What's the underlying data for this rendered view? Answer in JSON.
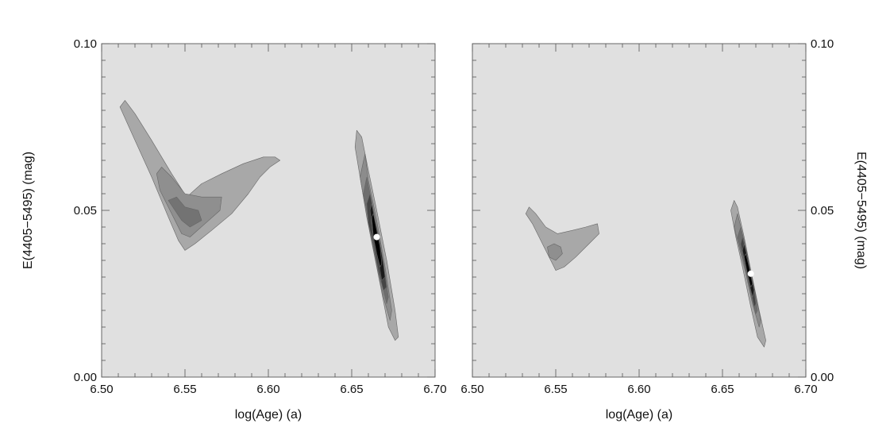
{
  "chart_data": [
    {
      "type": "contour",
      "panel": "left",
      "xlabel": "log(Age) (a)",
      "ylabel": "E(4405−5495) (mag)",
      "xlim": [
        6.5,
        6.7
      ],
      "ylim": [
        0.0,
        0.1
      ],
      "xticks": [
        "6.50",
        "6.55",
        "6.60",
        "6.65",
        "6.70"
      ],
      "yticks": [
        "0.00",
        "0.05",
        "0.10"
      ],
      "background_color": "#e0e0e0",
      "best_fit": {
        "x": 6.665,
        "y": 0.042
      },
      "contours": [
        {
          "level": 1,
          "color": "#a8a8a8",
          "points": [
            [
              6.511,
              0.081
            ],
            [
              6.514,
              0.083
            ],
            [
              6.52,
              0.079
            ],
            [
              6.53,
              0.071
            ],
            [
              6.542,
              0.061
            ],
            [
              6.551,
              0.054
            ],
            [
              6.56,
              0.058
            ],
            [
              6.572,
              0.061
            ],
            [
              6.585,
              0.064
            ],
            [
              6.597,
              0.066
            ],
            [
              6.604,
              0.066
            ],
            [
              6.607,
              0.065
            ],
            [
              6.601,
              0.063
            ],
            [
              6.595,
              0.06
            ],
            [
              6.588,
              0.055
            ],
            [
              6.578,
              0.049
            ],
            [
              6.566,
              0.044
            ],
            [
              6.556,
              0.04
            ],
            [
              6.55,
              0.038
            ],
            [
              6.546,
              0.041
            ],
            [
              6.54,
              0.048
            ],
            [
              6.53,
              0.06
            ],
            [
              6.52,
              0.071
            ]
          ]
        },
        {
          "level": 2,
          "color": "#8f8f8f",
          "points": [
            [
              6.533,
              0.061
            ],
            [
              6.536,
              0.063
            ],
            [
              6.542,
              0.06
            ],
            [
              6.55,
              0.055
            ],
            [
              6.56,
              0.054
            ],
            [
              6.572,
              0.054
            ],
            [
              6.571,
              0.05
            ],
            [
              6.562,
              0.046
            ],
            [
              6.553,
              0.042
            ],
            [
              6.548,
              0.043
            ],
            [
              6.543,
              0.048
            ],
            [
              6.535,
              0.056
            ]
          ]
        },
        {
          "level": 3,
          "color": "#737373",
          "points": [
            [
              6.54,
              0.053
            ],
            [
              6.545,
              0.054
            ],
            [
              6.55,
              0.051
            ],
            [
              6.558,
              0.05
            ],
            [
              6.56,
              0.047
            ],
            [
              6.553,
              0.045
            ],
            [
              6.548,
              0.047
            ]
          ]
        },
        {
          "level": 1,
          "color": "#a8a8a8",
          "points": [
            [
              6.652,
              0.069
            ],
            [
              6.653,
              0.074
            ],
            [
              6.656,
              0.072
            ],
            [
              6.66,
              0.062
            ],
            [
              6.665,
              0.05
            ],
            [
              6.671,
              0.035
            ],
            [
              6.676,
              0.02
            ],
            [
              6.678,
              0.012
            ],
            [
              6.676,
              0.011
            ],
            [
              6.672,
              0.015
            ],
            [
              6.667,
              0.028
            ],
            [
              6.661,
              0.043
            ],
            [
              6.656,
              0.057
            ]
          ]
        },
        {
          "level": 2,
          "color": "#8c8c8c",
          "points": [
            [
              6.655,
              0.06
            ],
            [
              6.658,
              0.067
            ],
            [
              6.66,
              0.059
            ],
            [
              6.665,
              0.047
            ],
            [
              6.67,
              0.033
            ],
            [
              6.674,
              0.02
            ],
            [
              6.673,
              0.017
            ],
            [
              6.669,
              0.024
            ],
            [
              6.664,
              0.036
            ],
            [
              6.659,
              0.048
            ]
          ]
        },
        {
          "level": 3,
          "color": "#6e6e6e",
          "points": [
            [
              6.657,
              0.055
            ],
            [
              6.659,
              0.06
            ],
            [
              6.661,
              0.055
            ],
            [
              6.665,
              0.045
            ],
            [
              6.669,
              0.034
            ],
            [
              6.672,
              0.024
            ],
            [
              6.671,
              0.022
            ],
            [
              6.667,
              0.03
            ],
            [
              6.663,
              0.039
            ],
            [
              6.66,
              0.047
            ]
          ]
        },
        {
          "level": 4,
          "color": "#454545",
          "points": [
            [
              6.659,
              0.052
            ],
            [
              6.661,
              0.055
            ],
            [
              6.663,
              0.05
            ],
            [
              6.666,
              0.042
            ],
            [
              6.669,
              0.034
            ],
            [
              6.671,
              0.027
            ],
            [
              6.669,
              0.026
            ],
            [
              6.666,
              0.032
            ],
            [
              6.663,
              0.04
            ],
            [
              6.66,
              0.046
            ]
          ]
        },
        {
          "level": 5,
          "color": "#1a1a1a",
          "points": [
            [
              6.661,
              0.05
            ],
            [
              6.662,
              0.052
            ],
            [
              6.664,
              0.047
            ],
            [
              6.667,
              0.04
            ],
            [
              6.669,
              0.034
            ],
            [
              6.67,
              0.03
            ],
            [
              6.668,
              0.029
            ],
            [
              6.666,
              0.035
            ],
            [
              6.663,
              0.041
            ],
            [
              6.662,
              0.046
            ]
          ]
        },
        {
          "level": 6,
          "color": "#000000",
          "points": [
            [
              6.662,
              0.048
            ],
            [
              6.663,
              0.049
            ],
            [
              6.665,
              0.044
            ],
            [
              6.667,
              0.039
            ],
            [
              6.668,
              0.034
            ],
            [
              6.667,
              0.033
            ],
            [
              6.665,
              0.037
            ],
            [
              6.663,
              0.042
            ]
          ]
        }
      ]
    },
    {
      "type": "contour",
      "panel": "right",
      "xlabel": "log(Age) (a)",
      "ylabel": "E(4405−5495) (mag)",
      "xlim": [
        6.5,
        6.7
      ],
      "ylim": [
        0.0,
        0.1
      ],
      "xticks": [
        "6.50",
        "6.55",
        "6.60",
        "6.65",
        "6.70"
      ],
      "yticks": [
        "0.00",
        "0.05",
        "0.10"
      ],
      "background_color": "#e0e0e0",
      "best_fit": {
        "x": 6.667,
        "y": 0.031
      },
      "contours": [
        {
          "level": 1,
          "color": "#a8a8a8",
          "points": [
            [
              6.532,
              0.049
            ],
            [
              6.534,
              0.051
            ],
            [
              6.538,
              0.049
            ],
            [
              6.544,
              0.045
            ],
            [
              6.551,
              0.043
            ],
            [
              6.56,
              0.044
            ],
            [
              6.568,
              0.045
            ],
            [
              6.575,
              0.046
            ],
            [
              6.576,
              0.043
            ],
            [
              6.57,
              0.04
            ],
            [
              6.562,
              0.036
            ],
            [
              6.555,
              0.033
            ],
            [
              6.55,
              0.032
            ],
            [
              6.547,
              0.035
            ],
            [
              6.542,
              0.04
            ],
            [
              6.536,
              0.046
            ]
          ]
        },
        {
          "level": 2,
          "color": "#8f8f8f",
          "points": [
            [
              6.545,
              0.039
            ],
            [
              6.549,
              0.04
            ],
            [
              6.553,
              0.039
            ],
            [
              6.554,
              0.037
            ],
            [
              6.55,
              0.035
            ],
            [
              6.546,
              0.036
            ]
          ]
        },
        {
          "level": 1,
          "color": "#a8a8a8",
          "points": [
            [
              6.655,
              0.05
            ],
            [
              6.657,
              0.053
            ],
            [
              6.659,
              0.051
            ],
            [
              6.663,
              0.042
            ],
            [
              6.667,
              0.032
            ],
            [
              6.672,
              0.02
            ],
            [
              6.676,
              0.011
            ],
            [
              6.675,
              0.009
            ],
            [
              6.671,
              0.012
            ],
            [
              6.667,
              0.021
            ],
            [
              6.662,
              0.033
            ],
            [
              6.658,
              0.042
            ]
          ]
        },
        {
          "level": 2,
          "color": "#8c8c8c",
          "points": [
            [
              6.657,
              0.045
            ],
            [
              6.659,
              0.049
            ],
            [
              6.661,
              0.045
            ],
            [
              6.665,
              0.036
            ],
            [
              6.669,
              0.027
            ],
            [
              6.673,
              0.017
            ],
            [
              6.672,
              0.015
            ],
            [
              6.668,
              0.022
            ],
            [
              6.664,
              0.031
            ],
            [
              6.66,
              0.039
            ]
          ]
        },
        {
          "level": 3,
          "color": "#6e6e6e",
          "points": [
            [
              6.659,
              0.042
            ],
            [
              6.661,
              0.045
            ],
            [
              6.663,
              0.041
            ],
            [
              6.666,
              0.034
            ],
            [
              6.669,
              0.027
            ],
            [
              6.671,
              0.02
            ],
            [
              6.67,
              0.019
            ],
            [
              6.667,
              0.025
            ],
            [
              6.664,
              0.032
            ],
            [
              6.661,
              0.038
            ]
          ]
        },
        {
          "level": 4,
          "color": "#454545",
          "points": [
            [
              6.661,
              0.04
            ],
            [
              6.662,
              0.042
            ],
            [
              6.664,
              0.038
            ],
            [
              6.667,
              0.032
            ],
            [
              6.669,
              0.026
            ],
            [
              6.67,
              0.022
            ],
            [
              6.669,
              0.021
            ],
            [
              6.667,
              0.026
            ],
            [
              6.664,
              0.032
            ],
            [
              6.662,
              0.037
            ]
          ]
        },
        {
          "level": 5,
          "color": "#1a1a1a",
          "points": [
            [
              6.662,
              0.038
            ],
            [
              6.663,
              0.04
            ],
            [
              6.665,
              0.036
            ],
            [
              6.667,
              0.031
            ],
            [
              6.669,
              0.026
            ],
            [
              6.668,
              0.024
            ],
            [
              6.666,
              0.028
            ],
            [
              6.664,
              0.033
            ]
          ]
        },
        {
          "level": 6,
          "color": "#000000",
          "points": [
            [
              6.663,
              0.036
            ],
            [
              6.664,
              0.037
            ],
            [
              6.666,
              0.033
            ],
            [
              6.668,
              0.028
            ],
            [
              6.667,
              0.027
            ],
            [
              6.665,
              0.031
            ]
          ]
        }
      ]
    }
  ]
}
